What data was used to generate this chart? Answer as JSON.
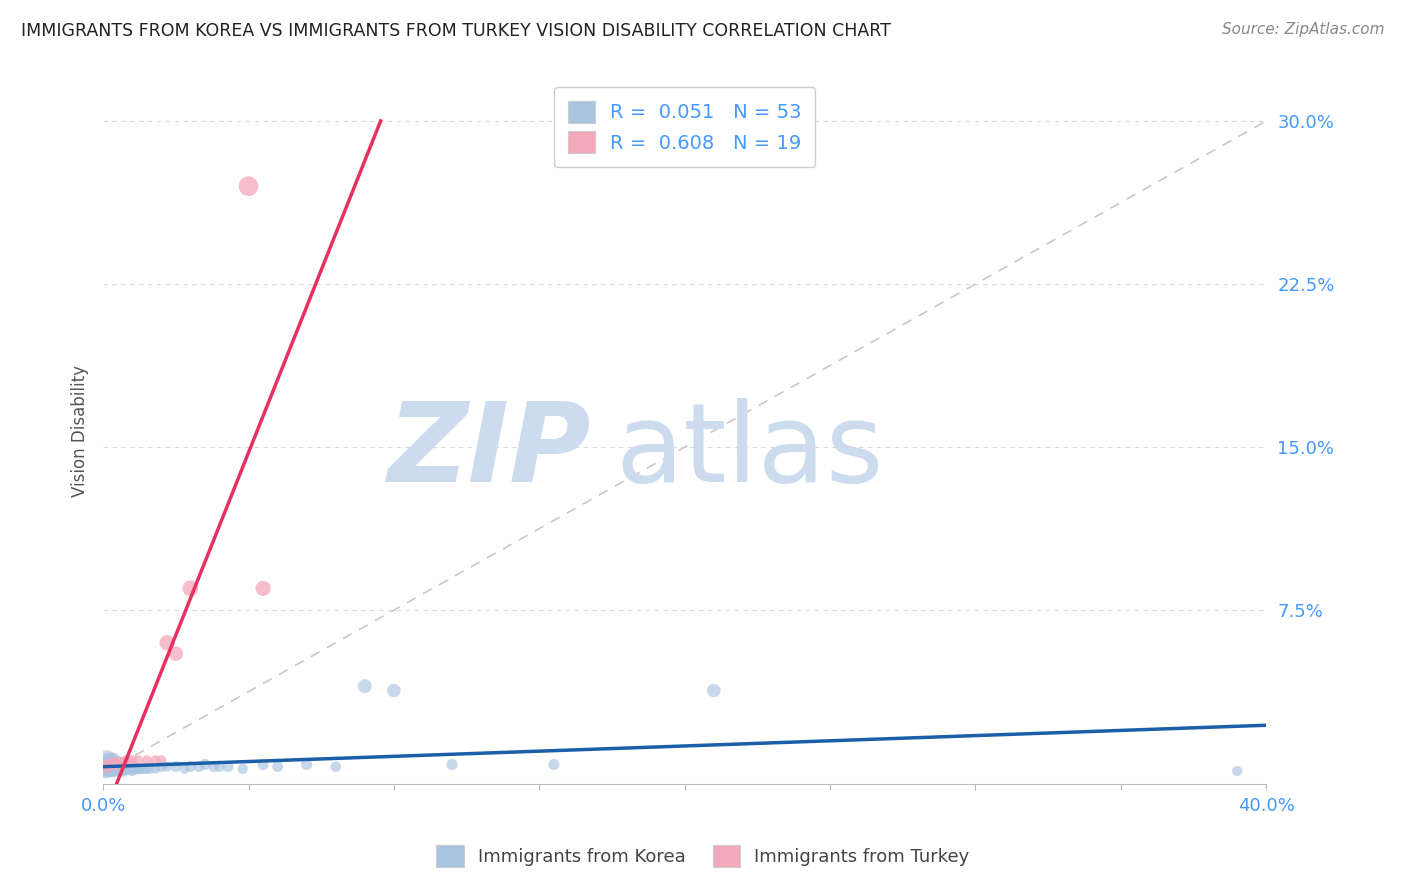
{
  "title": "IMMIGRANTS FROM KOREA VS IMMIGRANTS FROM TURKEY VISION DISABILITY CORRELATION CHART",
  "source": "Source: ZipAtlas.com",
  "ylabel": "Vision Disability",
  "xlim": [
    0.0,
    0.4
  ],
  "ylim": [
    -0.005,
    0.32
  ],
  "yticks": [
    0.0,
    0.075,
    0.15,
    0.225,
    0.3
  ],
  "ytick_labels": [
    "",
    "7.5%",
    "15.0%",
    "22.5%",
    "30.0%"
  ],
  "xtick_labels": [
    "0.0%",
    "",
    "",
    "",
    "",
    "",
    "",
    "",
    "40.0%"
  ],
  "korea_R": 0.051,
  "korea_N": 53,
  "turkey_R": 0.608,
  "turkey_N": 19,
  "korea_color": "#a8c4e0",
  "turkey_color": "#f4a8bc",
  "korea_line_color": "#1a5fa8",
  "turkey_line_color": "#e83060",
  "ref_line_color": "#c8c8c8",
  "grid_color": "#d8d8d8",
  "title_color": "#222222",
  "axis_label_color": "#4499ff",
  "watermark_zip_color": "#ccdcee",
  "watermark_atlas_color": "#ccdcee",
  "korea_x": [
    0.001,
    0.001,
    0.001,
    0.002,
    0.002,
    0.002,
    0.003,
    0.003,
    0.003,
    0.003,
    0.004,
    0.004,
    0.004,
    0.005,
    0.005,
    0.005,
    0.005,
    0.006,
    0.006,
    0.007,
    0.007,
    0.008,
    0.009,
    0.01,
    0.01,
    0.011,
    0.012,
    0.013,
    0.014,
    0.015,
    0.016,
    0.018,
    0.02,
    0.022,
    0.025,
    0.028,
    0.03,
    0.033,
    0.035,
    0.038,
    0.04,
    0.043,
    0.048,
    0.055,
    0.06,
    0.07,
    0.08,
    0.09,
    0.1,
    0.12,
    0.155,
    0.21,
    0.39
  ],
  "korea_y": [
    0.005,
    0.003,
    0.002,
    0.004,
    0.003,
    0.002,
    0.005,
    0.003,
    0.002,
    0.001,
    0.004,
    0.003,
    0.001,
    0.004,
    0.003,
    0.002,
    0.001,
    0.003,
    0.001,
    0.003,
    0.001,
    0.002,
    0.002,
    0.003,
    0.001,
    0.002,
    0.002,
    0.002,
    0.002,
    0.002,
    0.002,
    0.002,
    0.003,
    0.003,
    0.003,
    0.002,
    0.003,
    0.003,
    0.004,
    0.003,
    0.003,
    0.003,
    0.002,
    0.004,
    0.003,
    0.004,
    0.003,
    0.04,
    0.038,
    0.004,
    0.004,
    0.038,
    0.001
  ],
  "korea_sizes": [
    300,
    220,
    180,
    250,
    180,
    140,
    200,
    160,
    120,
    80,
    160,
    130,
    80,
    150,
    120,
    90,
    60,
    120,
    70,
    110,
    65,
    80,
    75,
    80,
    55,
    65,
    60,
    60,
    55,
    55,
    55,
    50,
    60,
    55,
    60,
    50,
    60,
    60,
    65,
    60,
    60,
    60,
    55,
    65,
    60,
    65,
    60,
    100,
    95,
    65,
    65,
    95,
    55
  ],
  "turkey_x": [
    0.001,
    0.002,
    0.003,
    0.004,
    0.005,
    0.006,
    0.007,
    0.008,
    0.009,
    0.01,
    0.012,
    0.015,
    0.018,
    0.02,
    0.022,
    0.025,
    0.03,
    0.05,
    0.055
  ],
  "turkey_y": [
    0.003,
    0.004,
    0.004,
    0.005,
    0.004,
    0.005,
    0.005,
    0.006,
    0.005,
    0.006,
    0.006,
    0.006,
    0.006,
    0.006,
    0.06,
    0.055,
    0.085,
    0.27,
    0.085
  ],
  "turkey_sizes": [
    80,
    70,
    65,
    65,
    60,
    60,
    58,
    56,
    54,
    52,
    50,
    50,
    50,
    50,
    120,
    110,
    130,
    200,
    120
  ]
}
